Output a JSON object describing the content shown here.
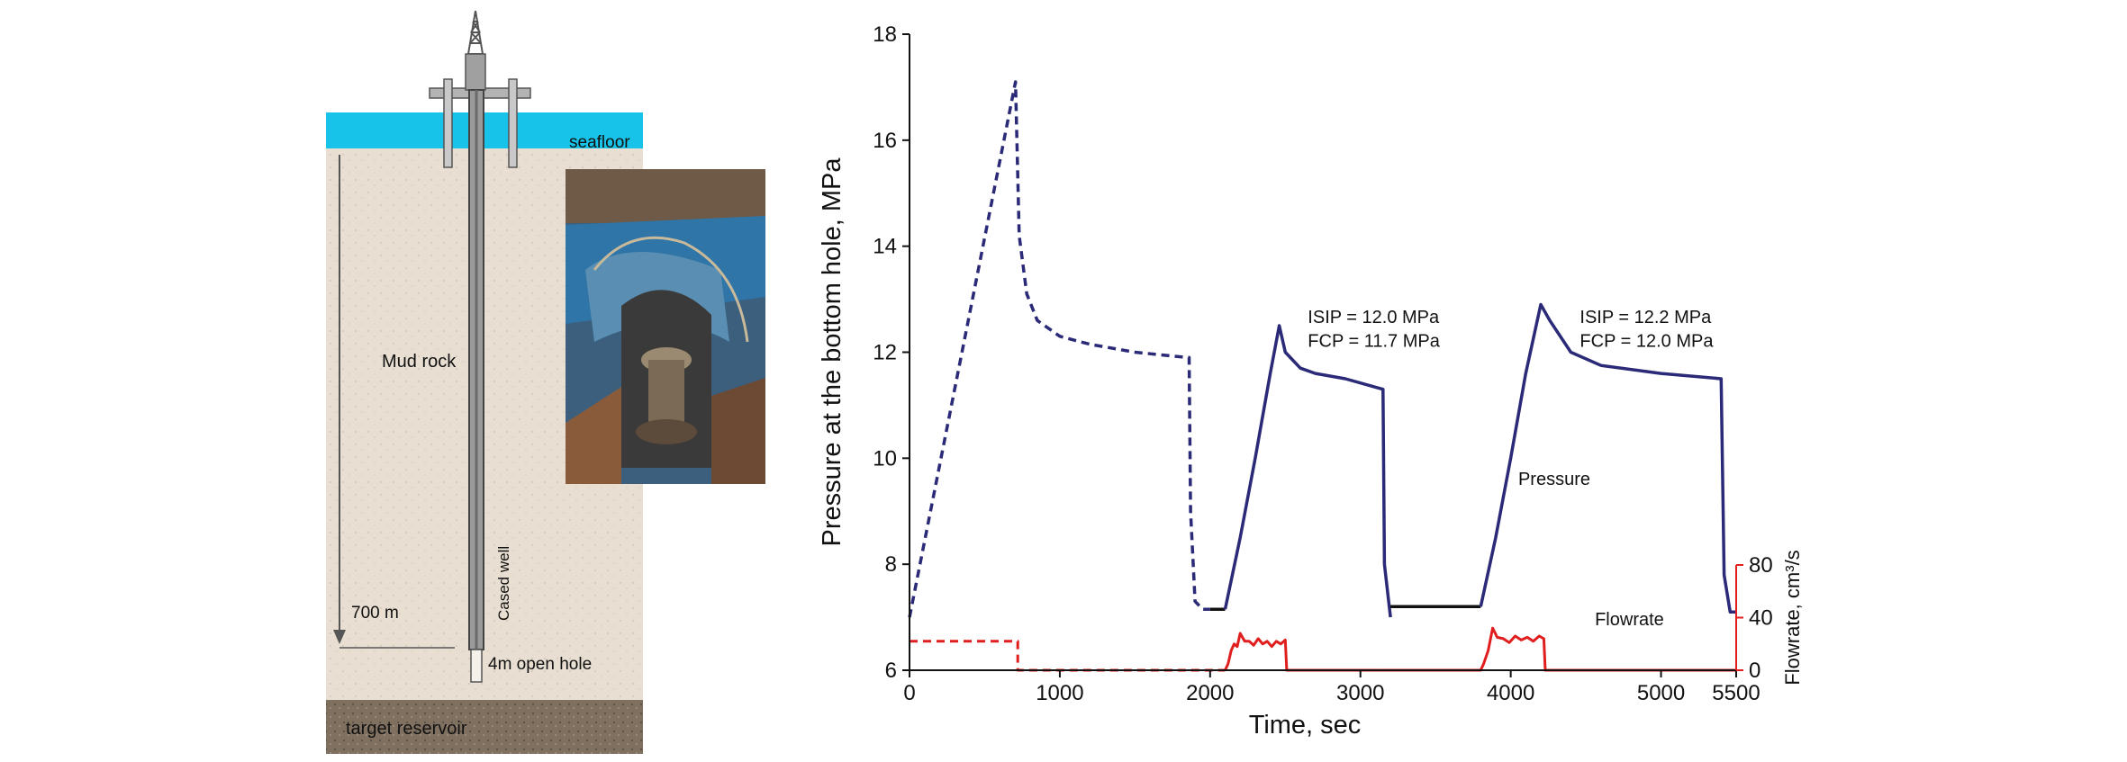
{
  "diagram": {
    "labels": {
      "seafloor": "seafloor",
      "mud_rock": "Mud rock",
      "cased_well": "Cased well",
      "depth": "700 m",
      "open_hole": "4m open hole",
      "target": "target reservoir"
    },
    "colors": {
      "sea": "#17c3e8",
      "rock": "#e8dfd2",
      "reservoir": "#7f7060",
      "casing": "#8f8f8f",
      "photo_frame": "#2f6f9c"
    }
  },
  "chart_data": {
    "type": "line",
    "xlabel": "Time, sec",
    "ylabel": "Pressure at the bottom hole, MPa",
    "y2label": "Flowrate, cm³/s",
    "xlim": [
      0,
      5500
    ],
    "ylim": [
      6,
      18
    ],
    "y2lim": [
      0,
      80
    ],
    "x_ticks": [
      0,
      1000,
      2000,
      3000,
      4000,
      5000,
      5500
    ],
    "y_ticks": [
      6,
      8,
      10,
      12,
      14,
      16,
      18
    ],
    "y2_ticks": [
      0,
      40,
      80
    ],
    "grid": false,
    "colors": {
      "pressure": "#2a2a78",
      "flowrate": "#e01e1e",
      "baseline": "#111111"
    },
    "series": [
      {
        "name": "Pressure",
        "segments": [
          {
            "style": "dashed",
            "color": "pressure",
            "points": [
              [
                0,
                7.0
              ],
              [
                705,
                17.1
              ],
              [
                730,
                14.2
              ],
              [
                780,
                13.1
              ],
              [
                850,
                12.6
              ],
              [
                1000,
                12.3
              ],
              [
                1200,
                12.15
              ],
              [
                1500,
                12.0
              ],
              [
                1850,
                11.9
              ],
              [
                1860,
                11.9
              ],
              [
                1870,
                9.0
              ],
              [
                1900,
                7.3
              ],
              [
                1950,
                7.15
              ],
              [
                2000,
                7.15
              ]
            ]
          },
          {
            "style": "solid",
            "color": "baseline",
            "points": [
              [
                2000,
                7.15
              ],
              [
                2100,
                7.15
              ]
            ]
          },
          {
            "style": "solid",
            "color": "pressure",
            "points": [
              [
                2100,
                7.15
              ],
              [
                2200,
                8.5
              ],
              [
                2300,
                10.0
              ],
              [
                2400,
                11.6
              ],
              [
                2460,
                12.5
              ],
              [
                2500,
                12.0
              ],
              [
                2600,
                11.7
              ],
              [
                2700,
                11.6
              ],
              [
                2900,
                11.5
              ],
              [
                3150,
                11.3
              ],
              [
                3160,
                8.0
              ],
              [
                3200,
                7.0
              ]
            ]
          },
          {
            "style": "solid",
            "color": "baseline",
            "points": [
              [
                3200,
                7.2
              ],
              [
                3800,
                7.2
              ]
            ]
          },
          {
            "style": "solid",
            "color": "pressure",
            "points": [
              [
                3800,
                7.2
              ],
              [
                3900,
                8.5
              ],
              [
                4000,
                10.0
              ],
              [
                4100,
                11.6
              ],
              [
                4200,
                12.9
              ],
              [
                4260,
                12.6
              ],
              [
                4400,
                12.0
              ],
              [
                4600,
                11.75
              ],
              [
                5000,
                11.6
              ],
              [
                5400,
                11.5
              ],
              [
                5420,
                7.8
              ],
              [
                5460,
                7.1
              ],
              [
                5500,
                7.1
              ]
            ]
          }
        ]
      },
      {
        "name": "Flowrate",
        "axis": "right",
        "segments": [
          {
            "style": "dashed",
            "color": "flowrate",
            "points": [
              [
                0,
                22
              ],
              [
                720,
                22
              ],
              [
                720,
                0
              ],
              [
                1200,
                0
              ],
              [
                2100,
                0
              ]
            ]
          },
          {
            "style": "solid",
            "color": "flowrate",
            "points": [
              [
                2100,
                0
              ],
              [
                2120,
                5
              ],
              [
                2140,
                15
              ],
              [
                2160,
                20
              ],
              [
                2180,
                18
              ],
              [
                2200,
                28
              ],
              [
                2230,
                22
              ],
              [
                2260,
                22
              ],
              [
                2290,
                19
              ],
              [
                2320,
                24
              ],
              [
                2350,
                20
              ],
              [
                2380,
                22
              ],
              [
                2410,
                18
              ],
              [
                2440,
                22
              ],
              [
                2470,
                20
              ],
              [
                2500,
                23
              ],
              [
                2510,
                0
              ],
              [
                3150,
                0
              ]
            ]
          },
          {
            "style": "solid",
            "color": "flowrate",
            "points": [
              [
                3150,
                0
              ],
              [
                3800,
                0
              ],
              [
                3820,
                5
              ],
              [
                3850,
                15
              ],
              [
                3880,
                32
              ],
              [
                3910,
                25
              ],
              [
                3950,
                24
              ],
              [
                3990,
                21
              ],
              [
                4030,
                26
              ],
              [
                4070,
                23
              ],
              [
                4110,
                25
              ],
              [
                4150,
                22
              ],
              [
                4190,
                26
              ],
              [
                4220,
                24
              ],
              [
                4230,
                0
              ],
              [
                5500,
                0
              ]
            ]
          }
        ]
      }
    ],
    "annotations": [
      {
        "text": "ISIP = 12.0 MPa",
        "x": 2650,
        "y": 12.55
      },
      {
        "text": "FCP = 11.7 MPa",
        "x": 2650,
        "y": 12.1
      },
      {
        "text": "ISIP = 12.2 MPa",
        "x": 4460,
        "y": 12.55
      },
      {
        "text": "FCP = 12.0 MPa",
        "x": 4460,
        "y": 12.1
      },
      {
        "text": "Pressure",
        "x": 4050,
        "y": 9.5
      },
      {
        "text": "Flowrate",
        "x": 4560,
        "y": 6.85
      }
    ]
  }
}
